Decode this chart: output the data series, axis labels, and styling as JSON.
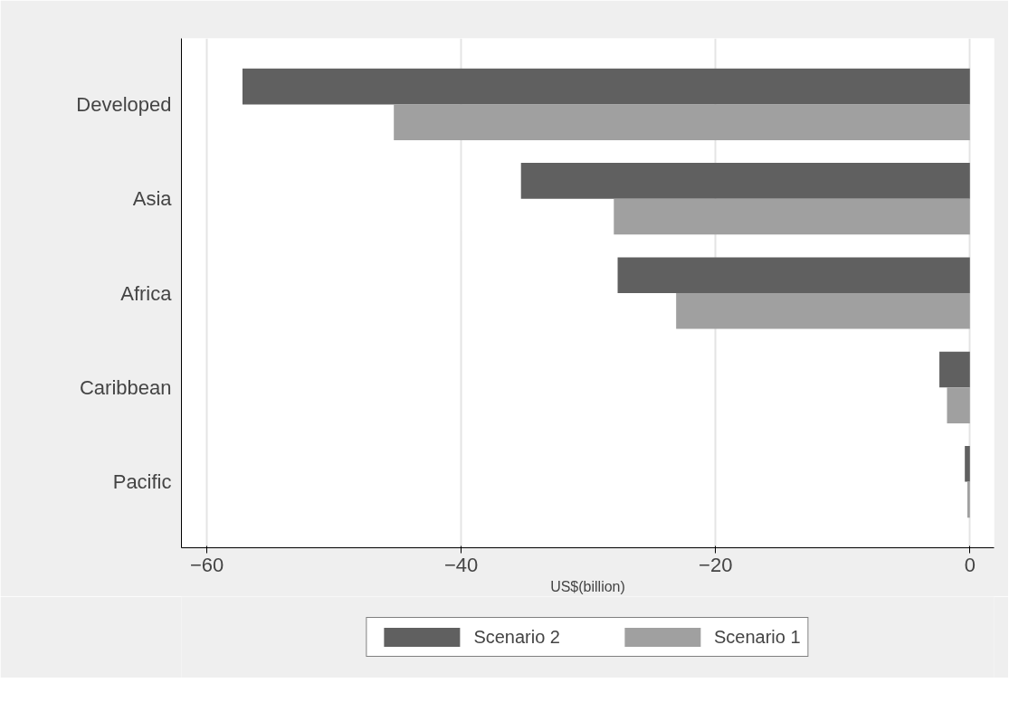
{
  "chart_data": {
    "type": "bar",
    "orientation": "horizontal",
    "categories": [
      "Developed",
      "Asia",
      "Africa",
      "Caribbean",
      "Pacific"
    ],
    "series": [
      {
        "name": "Scenario 2",
        "color": "#606060",
        "values": [
          -57.2,
          -35.3,
          -27.7,
          -2.4,
          -0.4
        ]
      },
      {
        "name": "Scenario 1",
        "color": "#a0a0a0",
        "values": [
          -45.3,
          -28.0,
          -23.1,
          -1.8,
          -0.2
        ]
      }
    ],
    "xlim": [
      -62,
      1.9
    ],
    "xticks": [
      -60,
      -40,
      -20,
      0
    ],
    "xlabel": "US$(billion)",
    "grid": "x",
    "legend": "bottom"
  }
}
